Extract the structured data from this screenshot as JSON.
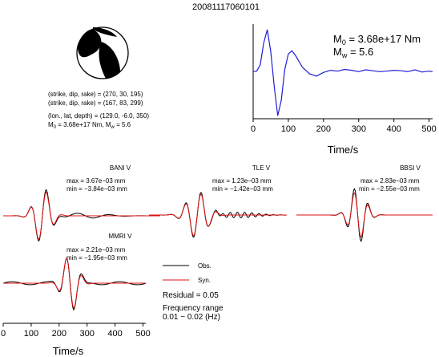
{
  "title": "20081117060101",
  "focal": {
    "plane1": "(strike, dip, rake) = (270, 30, 195)",
    "plane2": "(strike, dip, rake) = (167, 83, 299)",
    "location": "(lon., lat, depth) = (129.0, -6.0, 350)",
    "moment_prefix": "M",
    "moment_value": " = 3.68e+17 Nm, M",
    "mw_value": " = 5.6"
  },
  "stf": {
    "m0_label": "M",
    "m0_sub": "0",
    "m0_value": " = 3.68e+17 Nm",
    "mw_label": "M",
    "mw_sub": "w",
    "mw_value": " = 5.6",
    "xlabel": "Time/s",
    "xticks": [
      "0",
      "100",
      "200",
      "300",
      "400",
      "500"
    ],
    "color": "#1f1fd6"
  },
  "traces": [
    {
      "station": "BANI V",
      "max": "max = 3.67e−03 mm",
      "min": "min = −3.84e−03 mm"
    },
    {
      "station": "TLE V",
      "max": "max = 1.23e−03 mm",
      "min": "min = −1.42e−03 mm"
    },
    {
      "station": "BBSI V",
      "max": "max = 2.83e−03 mm",
      "min": "min = −2.55e−03 mm"
    },
    {
      "station": "MMRI V",
      "max": "max = 2.21e−03 mm",
      "min": "min = −1.95e−03 mm"
    }
  ],
  "legend": {
    "obs": "Obs.",
    "syn": "Syn.",
    "obs_color": "#000000",
    "syn_color": "#e01010"
  },
  "residual": "Residual = 0.05",
  "freq_title": "Frequency range",
  "freq_value": "0.01 − 0.02 (Hz)",
  "bottom_axis": {
    "xlabel": "Time/s",
    "xticks": [
      "0",
      "100",
      "200",
      "300",
      "400",
      "500"
    ]
  },
  "chart_data": {
    "type": "line",
    "title": "20081117060101",
    "xlabel": "Time/s",
    "xlim": [
      0,
      510
    ],
    "series": [
      {
        "name": "source time function",
        "x": [
          0,
          10,
          20,
          30,
          40,
          50,
          60,
          70,
          80,
          90,
          100,
          110,
          120,
          140,
          160,
          180,
          200,
          220,
          240,
          260,
          280,
          300,
          320,
          340,
          360,
          380,
          400,
          420,
          440,
          460,
          480,
          500,
          510
        ],
        "values": [
          0.05,
          0.06,
          0.2,
          0.7,
          1.0,
          0.5,
          -0.3,
          -0.95,
          -0.6,
          0.1,
          0.45,
          0.52,
          0.42,
          0.15,
          0.0,
          -0.05,
          0.03,
          0.08,
          0.06,
          0.1,
          0.08,
          0.05,
          0.09,
          0.07,
          0.05,
          0.06,
          0.08,
          0.07,
          0.05,
          0.09,
          0.04,
          0.06,
          0.05
        ]
      }
    ]
  }
}
